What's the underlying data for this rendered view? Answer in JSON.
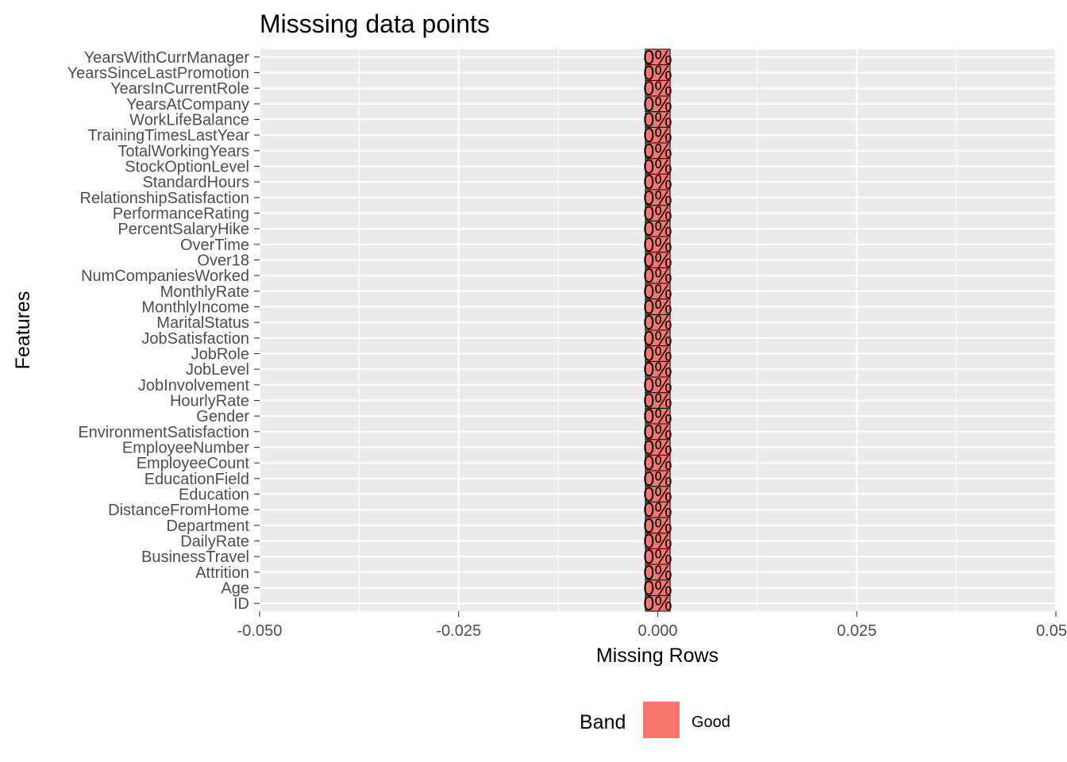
{
  "chart_data": {
    "type": "bar",
    "orientation": "horizontal",
    "title": "Misssing data points",
    "xlabel": "Missing Rows",
    "ylabel": "Features",
    "xlim": [
      -0.05,
      0.05
    ],
    "x_ticks": [
      -0.05,
      -0.025,
      0.0,
      0.025,
      0.05
    ],
    "x_tick_labels": [
      "-0.050",
      "-0.025",
      "0.000",
      "0.025",
      "0.05"
    ],
    "categories": [
      "ID",
      "Age",
      "Attrition",
      "BusinessTravel",
      "DailyRate",
      "Department",
      "DistanceFromHome",
      "Education",
      "EducationField",
      "EmployeeCount",
      "EmployeeNumber",
      "EnvironmentSatisfaction",
      "Gender",
      "HourlyRate",
      "JobInvolvement",
      "JobLevel",
      "JobRole",
      "JobSatisfaction",
      "MaritalStatus",
      "MonthlyIncome",
      "MonthlyRate",
      "NumCompaniesWorked",
      "Over18",
      "OverTime",
      "PercentSalaryHike",
      "PerformanceRating",
      "RelationshipSatisfaction",
      "StandardHours",
      "StockOptionLevel",
      "TotalWorkingYears",
      "TrainingTimesLastYear",
      "WorkLifeBalance",
      "YearsAtCompany",
      "YearsInCurrentRole",
      "YearsSinceLastPromotion",
      "YearsWithCurrManager"
    ],
    "values": [
      0,
      0,
      0,
      0,
      0,
      0,
      0,
      0,
      0,
      0,
      0,
      0,
      0,
      0,
      0,
      0,
      0,
      0,
      0,
      0,
      0,
      0,
      0,
      0,
      0,
      0,
      0,
      0,
      0,
      0,
      0,
      0,
      0,
      0,
      0,
      0
    ],
    "bar_label": "0%",
    "grid": true,
    "panel_background": "#ebebeb",
    "bar_color": "#f8766d",
    "legend": {
      "title": "Band",
      "placement": "bottom",
      "entries": [
        {
          "label": "Good",
          "color": "#f8766d"
        }
      ]
    }
  }
}
